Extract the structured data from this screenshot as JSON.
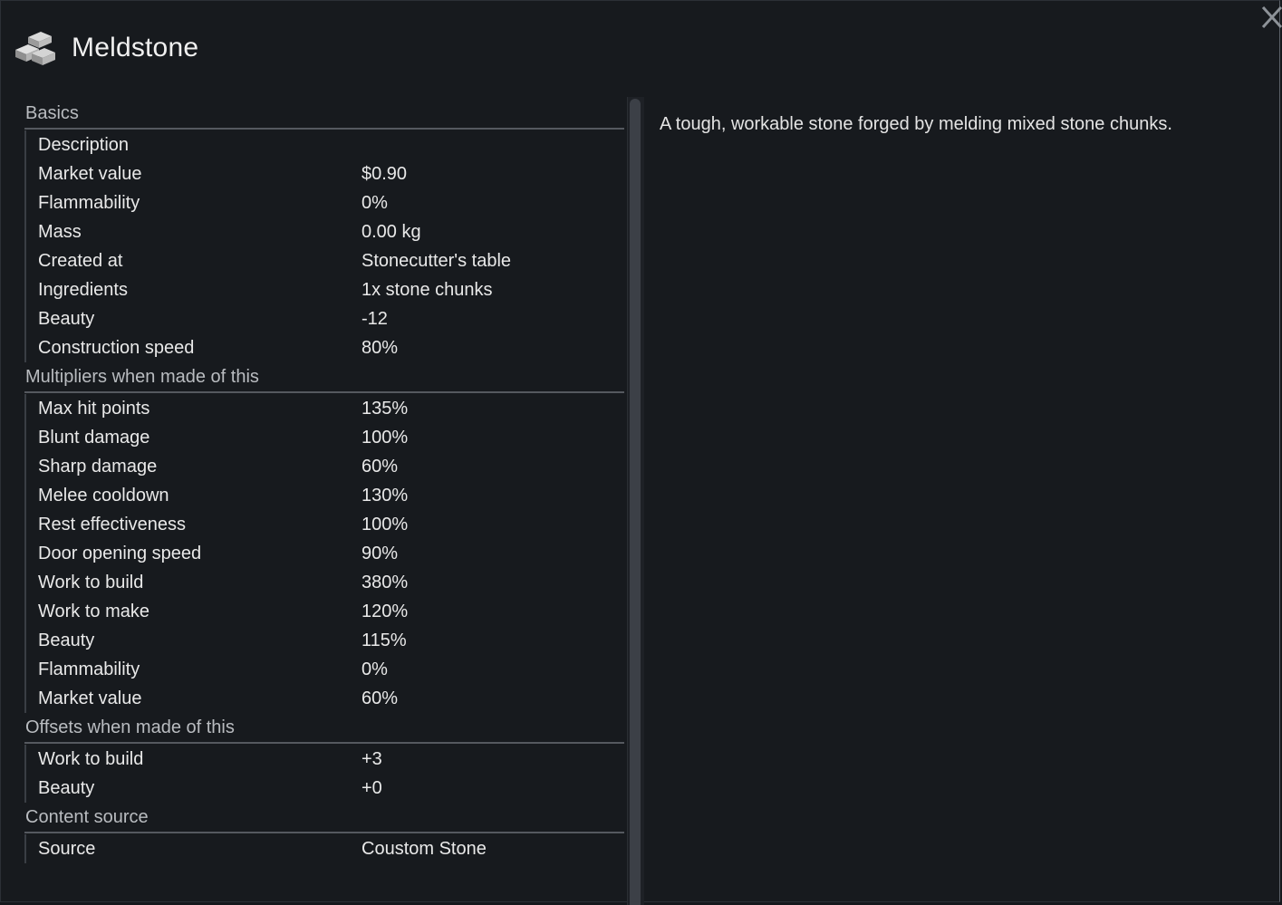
{
  "window": {
    "title": "Meldstone",
    "icon": "stone-blocks-icon",
    "close_icon": "close-icon"
  },
  "description": "A tough, workable stone forged by melding mixed stone chunks.",
  "sections": [
    {
      "header": "Basics",
      "rows": [
        {
          "label": "Description",
          "value": ""
        },
        {
          "label": "Market value",
          "value": "$0.90"
        },
        {
          "label": "Flammability",
          "value": "0%"
        },
        {
          "label": "Mass",
          "value": "0.00 kg"
        },
        {
          "label": "Created at",
          "value": "Stonecutter's table"
        },
        {
          "label": "Ingredients",
          "value": "1x stone chunks"
        },
        {
          "label": "Beauty",
          "value": "-12"
        },
        {
          "label": "Construction speed",
          "value": "80%"
        }
      ]
    },
    {
      "header": "Multipliers when made of this",
      "rows": [
        {
          "label": "Max hit points",
          "value": "135%"
        },
        {
          "label": "Blunt damage",
          "value": "100%"
        },
        {
          "label": "Sharp damage",
          "value": "60%"
        },
        {
          "label": "Melee cooldown",
          "value": "130%"
        },
        {
          "label": "Rest effectiveness",
          "value": "100%"
        },
        {
          "label": "Door opening speed",
          "value": "90%"
        },
        {
          "label": "Work to build",
          "value": "380%"
        },
        {
          "label": "Work to make",
          "value": "120%"
        },
        {
          "label": "Beauty",
          "value": "115%"
        },
        {
          "label": "Flammability",
          "value": "0%"
        },
        {
          "label": "Market value",
          "value": "60%"
        }
      ]
    },
    {
      "header": "Offsets when made of this",
      "rows": [
        {
          "label": "Work to build",
          "value": "+3"
        },
        {
          "label": "Beauty",
          "value": "+0"
        }
      ]
    },
    {
      "header": "Content source",
      "rows": [
        {
          "label": "Source",
          "value": "Coustom Stone"
        }
      ]
    }
  ],
  "colors": {
    "background": "#171a1e",
    "section_header_text": "#b9bcc0",
    "row_text": "#e9e9e9",
    "divider": "#55595f"
  }
}
